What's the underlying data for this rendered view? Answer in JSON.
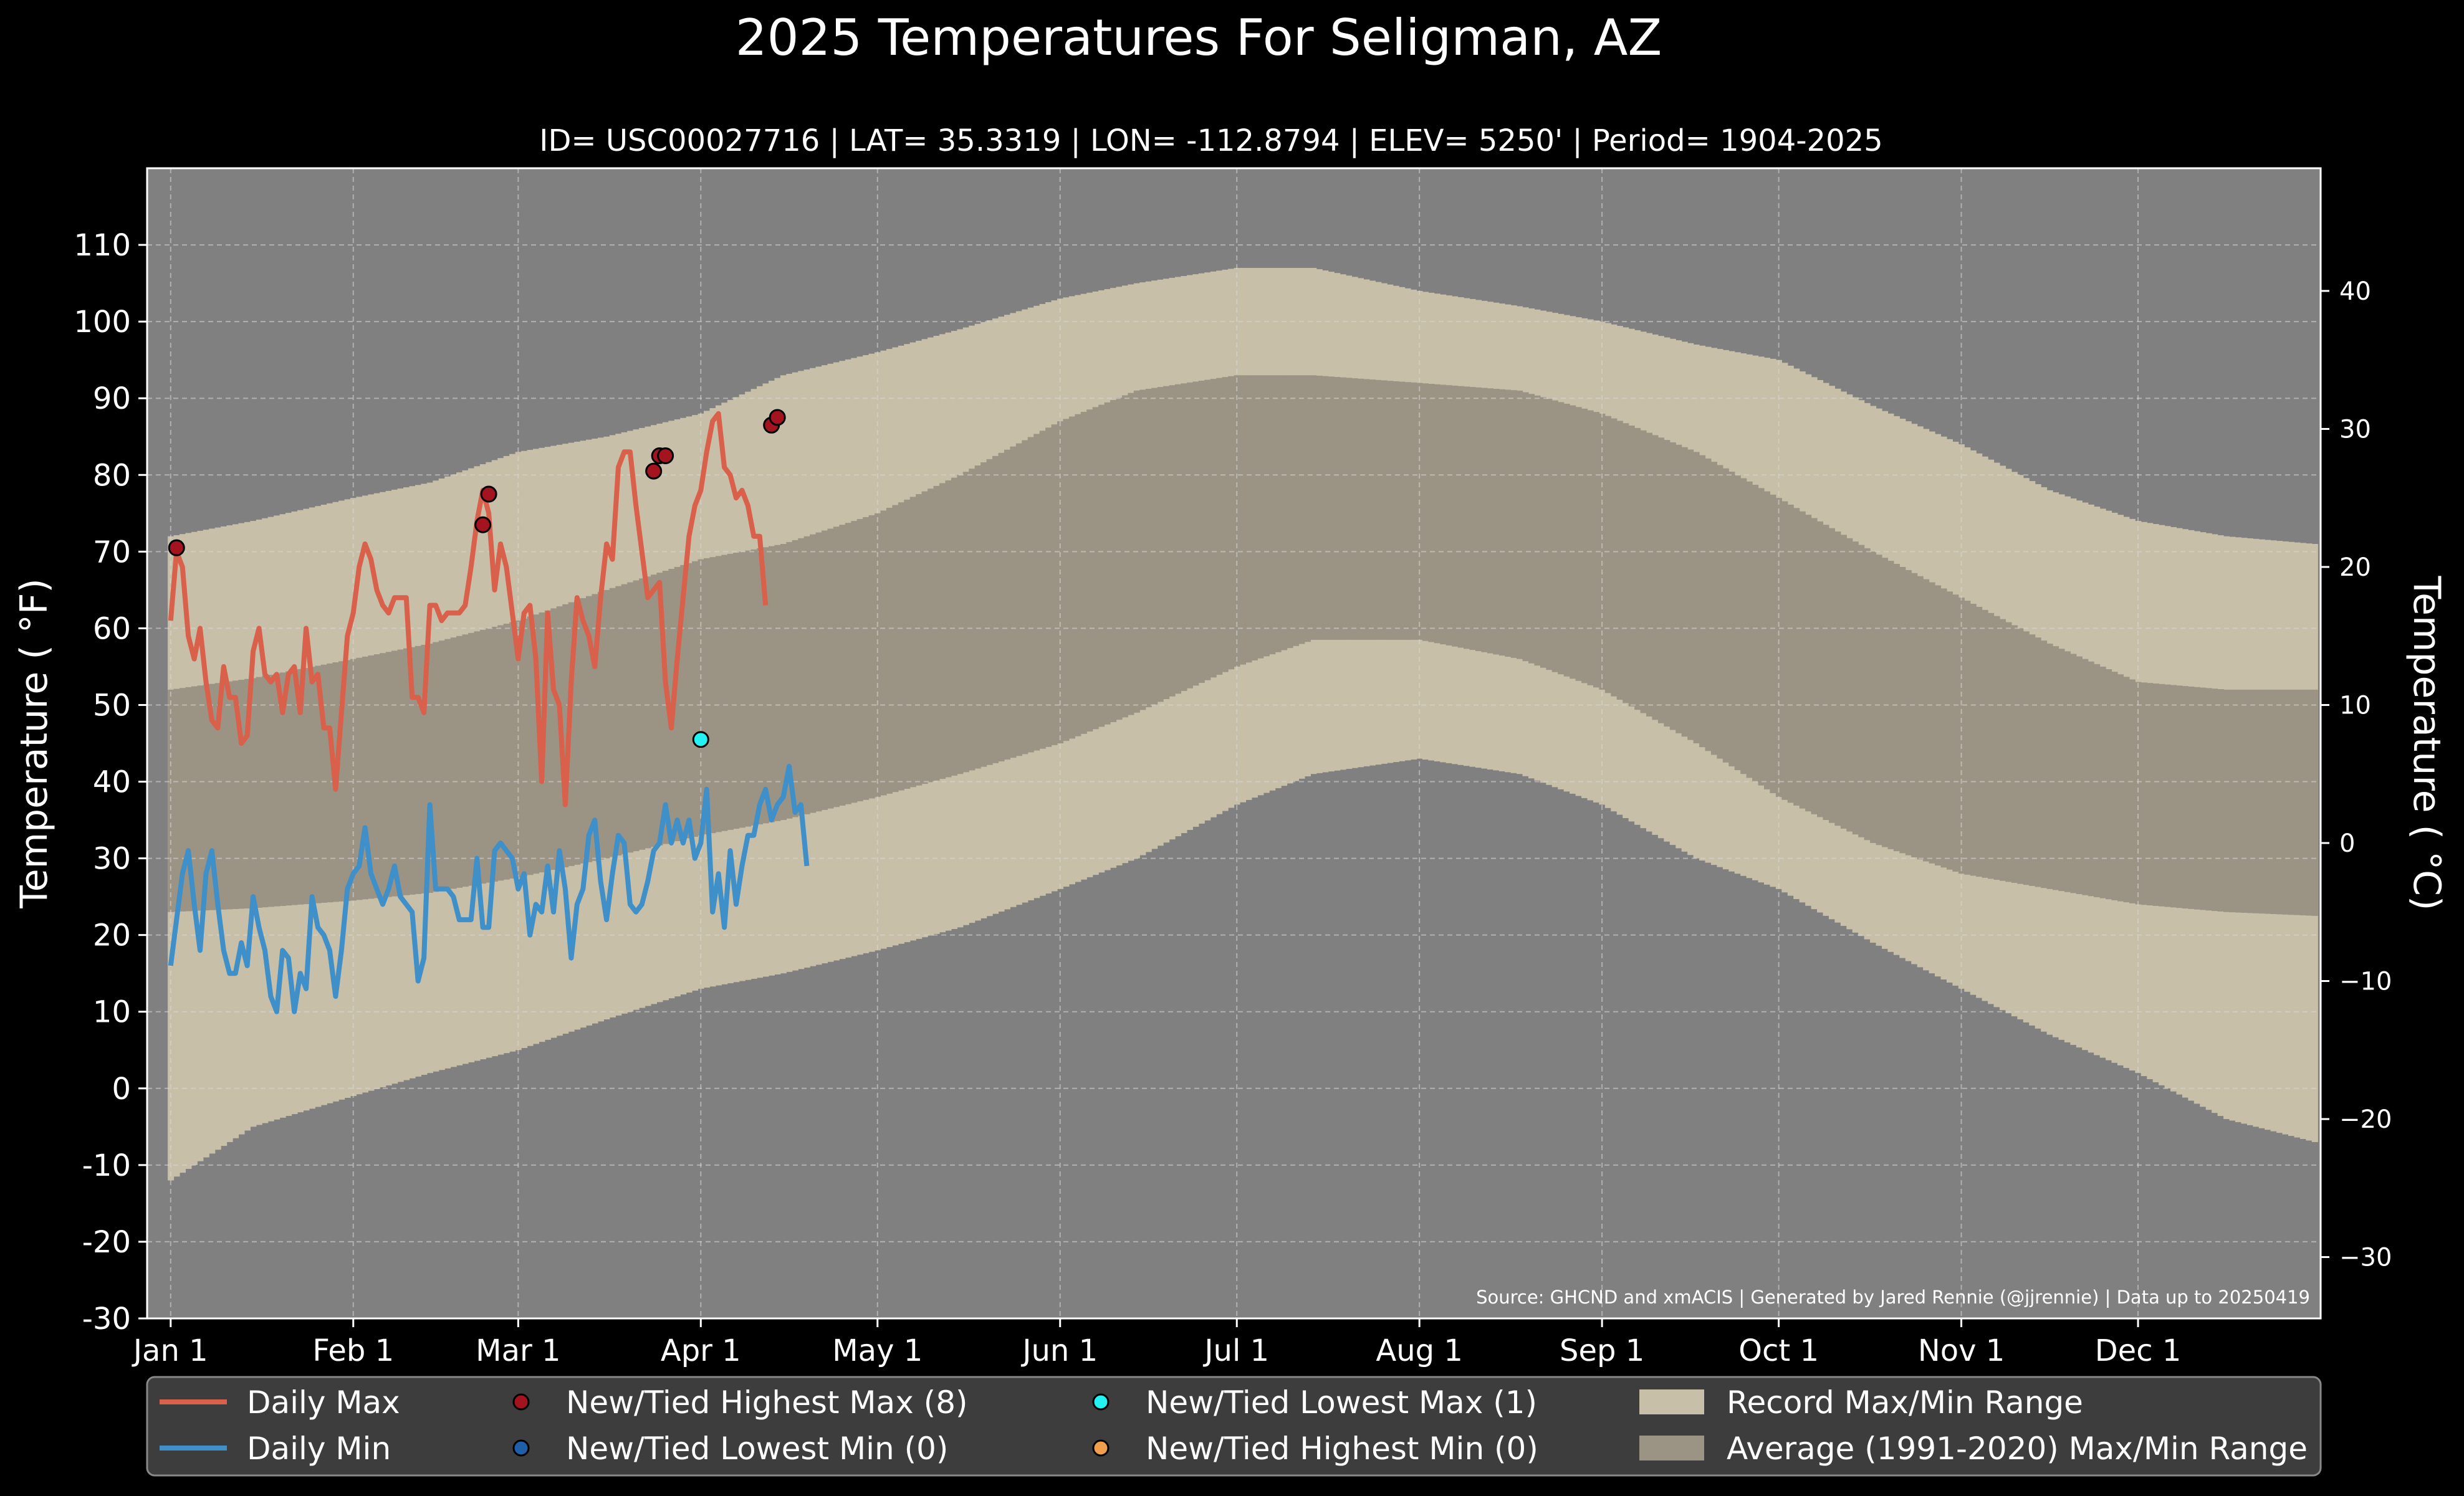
{
  "chart_data": {
    "type": "line",
    "title": "2025 Temperatures For Seligman, AZ",
    "subtitle": "ID= USC00027716 | LAT= 35.3319 | LON= -112.8794 | ELEV= 5250' | Period= 1904-2025",
    "ylabel_left": "Temperature ( °F)",
    "ylabel_right": "Temperature ( °C)",
    "source": "Source: GHCND and xmACIS | Generated by Jared Rennie (@jjrennie) | Data up to 20250419",
    "ylim_f": [
      -30,
      120
    ],
    "xlim_day": [
      -3,
      366
    ],
    "yticks_f": [
      -30,
      -20,
      -10,
      0,
      10,
      20,
      30,
      40,
      50,
      60,
      70,
      80,
      90,
      100,
      110
    ],
    "yticks_c": [
      -30,
      -20,
      -10,
      0,
      10,
      20,
      30,
      40
    ],
    "xticks": [
      {
        "label": "Jan 1",
        "day": 1
      },
      {
        "label": "Feb 1",
        "day": 32
      },
      {
        "label": "Mar 1",
        "day": 60
      },
      {
        "label": "Apr 1",
        "day": 91
      },
      {
        "label": "May 1",
        "day": 121
      },
      {
        "label": "Jun 1",
        "day": 152
      },
      {
        "label": "Jul 1",
        "day": 182
      },
      {
        "label": "Aug 1",
        "day": 213
      },
      {
        "label": "Sep 1",
        "day": 244
      },
      {
        "label": "Oct 1",
        "day": 274
      },
      {
        "label": "Nov 1",
        "day": 305
      },
      {
        "label": "Dec 1",
        "day": 335
      }
    ],
    "grid": true,
    "colors": {
      "background": "#808080",
      "record_range": "#c8bfa8",
      "normal_range": "#9b9384",
      "daily_max": "#d9604a",
      "daily_min": "#3f8fc9",
      "new_high_max": "#a3141f",
      "new_low_min": "#1f5fa8",
      "new_low_max": "#22f2f2",
      "new_high_min": "#f0a04b"
    },
    "record_max_anchors": [
      [
        1,
        72
      ],
      [
        15,
        74
      ],
      [
        32,
        77
      ],
      [
        45,
        79
      ],
      [
        60,
        83
      ],
      [
        75,
        85
      ],
      [
        91,
        88
      ],
      [
        105,
        93
      ],
      [
        121,
        96
      ],
      [
        135,
        99
      ],
      [
        152,
        103
      ],
      [
        165,
        105
      ],
      [
        182,
        107
      ],
      [
        195,
        107
      ],
      [
        213,
        104
      ],
      [
        230,
        102
      ],
      [
        244,
        100
      ],
      [
        260,
        97
      ],
      [
        274,
        95
      ],
      [
        290,
        89
      ],
      [
        305,
        84
      ],
      [
        320,
        78
      ],
      [
        335,
        74
      ],
      [
        350,
        72
      ],
      [
        365,
        71
      ]
    ],
    "record_min_anchors": [
      [
        1,
        -12
      ],
      [
        15,
        -5
      ],
      [
        32,
        -1
      ],
      [
        45,
        2
      ],
      [
        60,
        5
      ],
      [
        75,
        9
      ],
      [
        91,
        13
      ],
      [
        105,
        15
      ],
      [
        121,
        18
      ],
      [
        135,
        21
      ],
      [
        152,
        26
      ],
      [
        165,
        30
      ],
      [
        182,
        37
      ],
      [
        195,
        41
      ],
      [
        213,
        43
      ],
      [
        230,
        41
      ],
      [
        244,
        37
      ],
      [
        260,
        30
      ],
      [
        274,
        26
      ],
      [
        290,
        19
      ],
      [
        305,
        13
      ],
      [
        320,
        7
      ],
      [
        335,
        2
      ],
      [
        350,
        -4
      ],
      [
        365,
        -7
      ]
    ],
    "normal_max_anchors": [
      [
        1,
        52
      ],
      [
        15,
        53.5
      ],
      [
        32,
        56
      ],
      [
        45,
        58
      ],
      [
        60,
        61
      ],
      [
        75,
        65
      ],
      [
        91,
        69
      ],
      [
        105,
        71
      ],
      [
        121,
        75
      ],
      [
        135,
        80
      ],
      [
        152,
        87
      ],
      [
        165,
        91
      ],
      [
        182,
        93
      ],
      [
        195,
        93
      ],
      [
        213,
        92
      ],
      [
        230,
        91
      ],
      [
        244,
        88
      ],
      [
        260,
        83
      ],
      [
        274,
        77
      ],
      [
        290,
        70
      ],
      [
        305,
        64
      ],
      [
        320,
        58
      ],
      [
        335,
        53
      ],
      [
        350,
        52
      ],
      [
        365,
        52
      ]
    ],
    "normal_min_anchors": [
      [
        1,
        23
      ],
      [
        15,
        23.5
      ],
      [
        32,
        24.5
      ],
      [
        45,
        25.5
      ],
      [
        60,
        27.5
      ],
      [
        75,
        30
      ],
      [
        91,
        33
      ],
      [
        105,
        35
      ],
      [
        121,
        38
      ],
      [
        135,
        41
      ],
      [
        152,
        45
      ],
      [
        165,
        49
      ],
      [
        182,
        55
      ],
      [
        195,
        58.5
      ],
      [
        213,
        58.5
      ],
      [
        230,
        56
      ],
      [
        244,
        52
      ],
      [
        260,
        45
      ],
      [
        274,
        38
      ],
      [
        290,
        32
      ],
      [
        305,
        28
      ],
      [
        320,
        26
      ],
      [
        335,
        24
      ],
      [
        350,
        23
      ],
      [
        365,
        22.5
      ]
    ],
    "series": [
      {
        "name": "Daily Max",
        "x": [
          1,
          2,
          3,
          4,
          5,
          6,
          7,
          8,
          9,
          10,
          11,
          12,
          13,
          14,
          15,
          16,
          17,
          18,
          19,
          20,
          21,
          22,
          23,
          24,
          25,
          26,
          27,
          28,
          29,
          30,
          31,
          32,
          33,
          34,
          35,
          36,
          37,
          38,
          39,
          40,
          41,
          42,
          43,
          44,
          45,
          46,
          47,
          48,
          49,
          50,
          51,
          52,
          53,
          54,
          55,
          56,
          57,
          58,
          59,
          60,
          61,
          62,
          63,
          64,
          65,
          66,
          67,
          68,
          69,
          70,
          71,
          72,
          73,
          74,
          75,
          76,
          77,
          78,
          79,
          80,
          81,
          82,
          83,
          84,
          85,
          86,
          87,
          88,
          89,
          90,
          91,
          92,
          93,
          94,
          95,
          96,
          97,
          98,
          99,
          100,
          101,
          102,
          103,
          104,
          105,
          106,
          107,
          108,
          109
        ],
        "values": [
          61,
          70,
          68,
          59,
          56,
          60,
          53,
          48,
          47,
          55,
          51,
          51,
          45,
          46,
          57,
          60,
          54,
          53,
          54,
          49,
          54,
          55,
          49,
          60,
          53,
          54,
          47,
          47,
          39,
          49,
          59,
          62,
          68,
          71,
          69,
          65,
          63,
          62,
          64,
          64,
          64,
          51,
          51,
          49,
          63,
          63,
          61,
          62,
          62,
          62,
          63,
          68,
          74,
          78,
          75,
          65,
          71,
          68,
          62,
          56,
          62,
          63,
          56,
          40,
          62,
          52,
          50,
          37,
          53,
          64,
          61,
          59,
          55,
          64,
          71,
          69,
          81,
          83,
          83,
          76,
          70,
          64,
          65,
          66,
          53,
          47,
          56,
          64,
          72,
          76,
          78,
          83,
          87,
          88,
          81,
          80,
          77,
          78,
          76,
          72,
          72,
          63,
          null,
          null,
          null,
          null,
          null,
          null,
          null
        ]
      },
      {
        "name": "Daily Min",
        "x": [
          1,
          2,
          3,
          4,
          5,
          6,
          7,
          8,
          9,
          10,
          11,
          12,
          13,
          14,
          15,
          16,
          17,
          18,
          19,
          20,
          21,
          22,
          23,
          24,
          25,
          26,
          27,
          28,
          29,
          30,
          31,
          32,
          33,
          34,
          35,
          36,
          37,
          38,
          39,
          40,
          41,
          42,
          43,
          44,
          45,
          46,
          47,
          48,
          49,
          50,
          51,
          52,
          53,
          54,
          55,
          56,
          57,
          58,
          59,
          60,
          61,
          62,
          63,
          64,
          65,
          66,
          67,
          68,
          69,
          70,
          71,
          72,
          73,
          74,
          75,
          76,
          77,
          78,
          79,
          80,
          81,
          82,
          83,
          84,
          85,
          86,
          87,
          88,
          89,
          90,
          91,
          92,
          93,
          94,
          95,
          96,
          97,
          98,
          99,
          100,
          101,
          102,
          103,
          104,
          105,
          106,
          107,
          108,
          109
        ],
        "values": [
          16,
          22,
          28,
          31,
          24,
          18,
          28,
          31,
          24,
          18,
          15,
          15,
          19,
          16,
          25,
          21,
          18,
          12,
          10,
          18,
          17,
          10,
          15,
          13,
          25,
          21,
          20,
          18,
          12,
          18,
          26,
          28,
          29,
          34,
          28,
          26,
          24,
          26,
          29,
          25,
          24,
          23,
          14,
          17,
          37,
          26,
          26,
          26,
          25,
          22,
          22,
          22,
          30,
          21,
          21,
          31,
          32,
          31,
          30,
          26,
          28,
          20,
          24,
          23,
          29,
          23,
          31,
          26,
          17,
          24,
          26,
          33,
          35,
          27,
          22,
          28,
          33,
          32,
          24,
          23,
          24,
          27,
          31,
          32,
          37,
          32,
          35,
          32,
          35,
          30,
          32,
          39,
          23,
          28,
          21,
          31,
          24,
          29,
          33,
          33,
          37,
          39,
          35,
          37,
          38,
          42,
          36,
          37,
          29
        ]
      }
    ],
    "markers": {
      "new_high_max": [
        [
          2,
          70.5
        ],
        [
          54,
          73.5
        ],
        [
          55,
          77.5
        ],
        [
          83,
          80.5
        ],
        [
          84,
          82.5
        ],
        [
          85,
          82.5
        ],
        [
          103,
          86.5
        ],
        [
          104,
          87.5
        ]
      ],
      "new_low_max": [
        [
          91,
          45.5
        ]
      ]
    },
    "legend": {
      "position": "bottom",
      "items": [
        {
          "label": "Daily Max",
          "kind": "line",
          "color_key": "daily_max"
        },
        {
          "label": "Daily Min",
          "kind": "line",
          "color_key": "daily_min"
        },
        {
          "label": "New/Tied Highest Max (8)",
          "kind": "dot",
          "color_key": "new_high_max"
        },
        {
          "label": "New/Tied Lowest Min (0)",
          "kind": "dot",
          "color_key": "new_low_min"
        },
        {
          "label": "New/Tied Lowest Max (1)",
          "kind": "dot",
          "color_key": "new_low_max"
        },
        {
          "label": "New/Tied Highest Min (0)",
          "kind": "dot",
          "color_key": "new_high_min"
        },
        {
          "label": "Record Max/Min Range",
          "kind": "patch",
          "color_key": "record_range"
        },
        {
          "label": "Average (1991-2020) Max/Min Range",
          "kind": "patch",
          "color_key": "normal_range"
        }
      ]
    }
  }
}
